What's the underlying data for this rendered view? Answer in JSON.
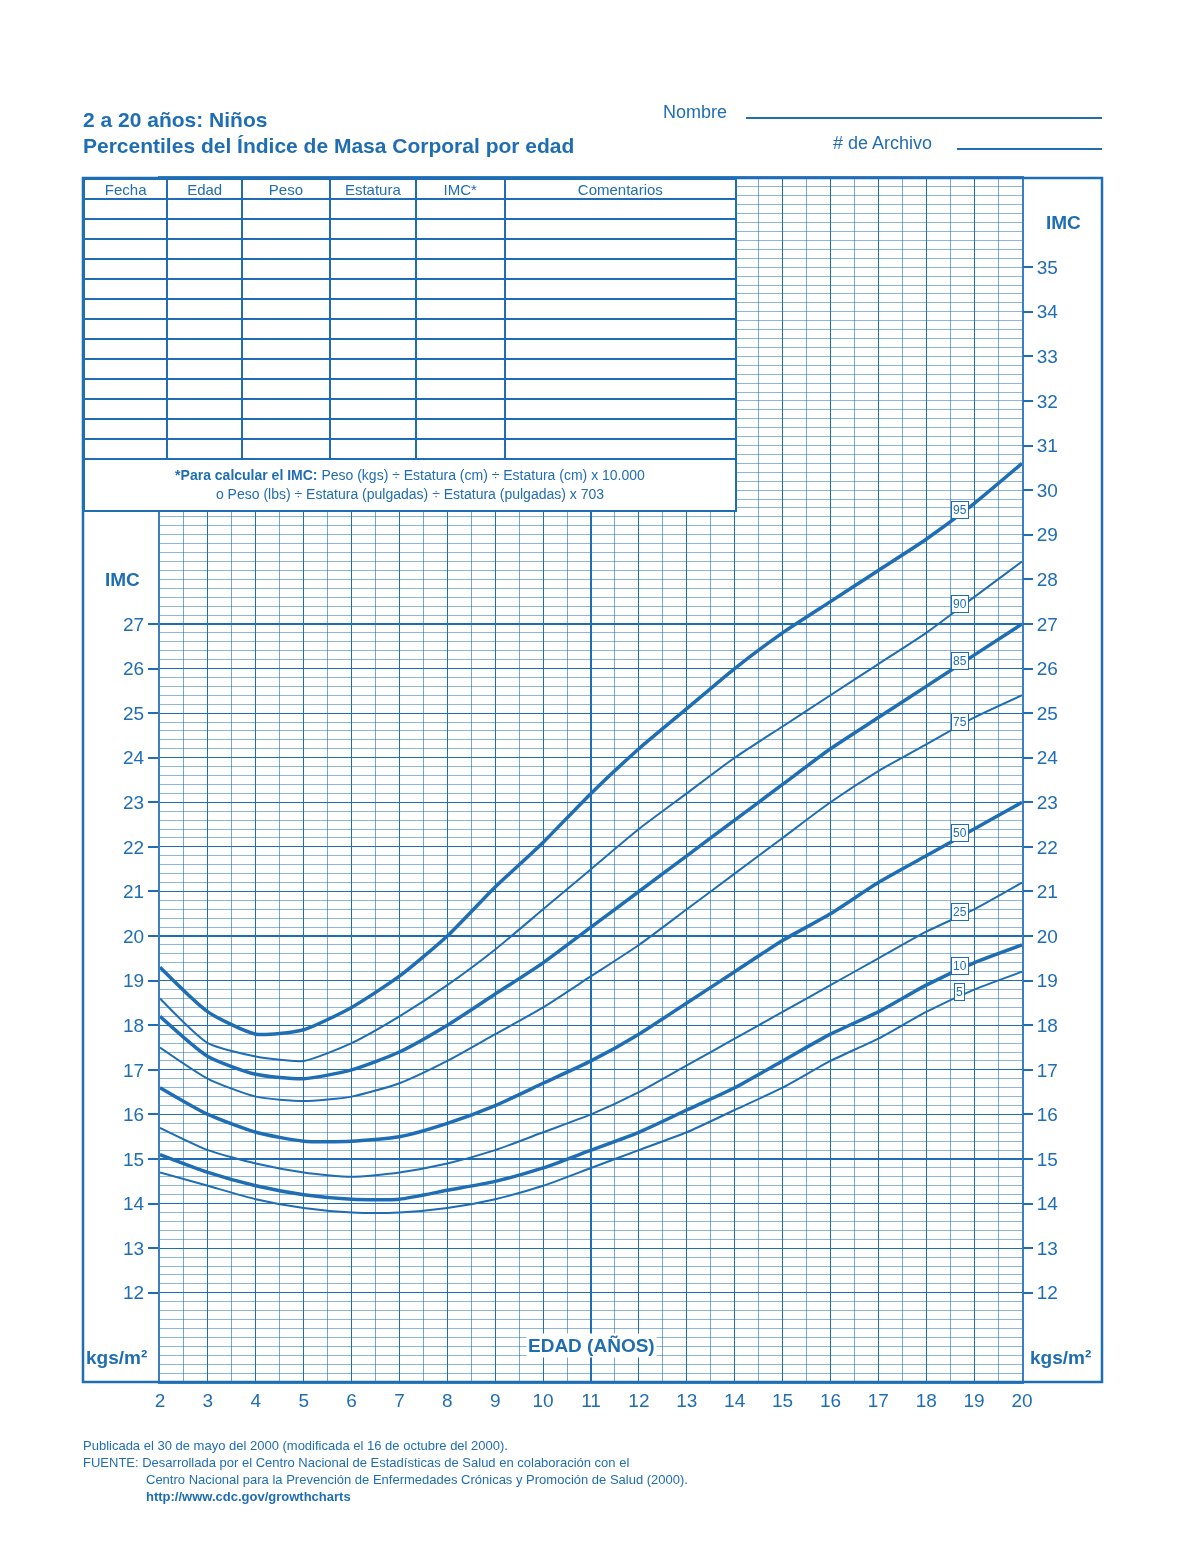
{
  "chart_data": {
    "type": "line",
    "title": "2 a 20 años: Niños",
    "subtitle": "Percentiles del Índice de Masa Corporal por edad",
    "xlabel": "EDAD (AÑOS)",
    "ylabel": "IMC",
    "y2label": "IMC",
    "x": [
      2,
      3,
      4,
      5,
      6,
      7,
      8,
      9,
      10,
      11,
      12,
      13,
      14,
      15,
      16,
      17,
      18,
      19,
      20
    ],
    "series": [
      {
        "name": "95",
        "color": "#1f6db3",
        "values": [
          19.3,
          18.3,
          17.8,
          17.9,
          18.4,
          19.1,
          20.0,
          21.1,
          22.1,
          23.2,
          24.2,
          25.1,
          26.0,
          26.8,
          27.5,
          28.2,
          28.9,
          29.7,
          30.6
        ]
      },
      {
        "name": "90",
        "color": "#1f6db3",
        "values": [
          18.6,
          17.6,
          17.3,
          17.2,
          17.6,
          18.2,
          18.9,
          19.7,
          20.6,
          21.5,
          22.4,
          23.2,
          24.0,
          24.7,
          25.4,
          26.1,
          26.8,
          27.6,
          28.4
        ]
      },
      {
        "name": "85",
        "color": "#1f6db3",
        "values": [
          18.2,
          17.3,
          16.9,
          16.8,
          17.0,
          17.4,
          18.0,
          18.7,
          19.4,
          20.2,
          21.0,
          21.8,
          22.6,
          23.4,
          24.2,
          24.9,
          25.6,
          26.3,
          27.0
        ]
      },
      {
        "name": "75",
        "color": "#1f6db3",
        "values": [
          17.5,
          16.8,
          16.4,
          16.3,
          16.4,
          16.7,
          17.2,
          17.8,
          18.4,
          19.1,
          19.8,
          20.6,
          21.4,
          22.2,
          23.0,
          23.7,
          24.3,
          24.9,
          25.4
        ]
      },
      {
        "name": "50",
        "color": "#1f6db3",
        "values": [
          16.6,
          16.0,
          15.6,
          15.4,
          15.4,
          15.5,
          15.8,
          16.2,
          16.7,
          17.2,
          17.8,
          18.5,
          19.2,
          19.9,
          20.5,
          21.2,
          21.8,
          22.4,
          23.0
        ]
      },
      {
        "name": "25",
        "color": "#1f6db3",
        "values": [
          15.7,
          15.2,
          14.9,
          14.7,
          14.6,
          14.7,
          14.9,
          15.2,
          15.6,
          16.0,
          16.5,
          17.1,
          17.7,
          18.3,
          18.9,
          19.5,
          20.1,
          20.6,
          21.2
        ]
      },
      {
        "name": "10",
        "color": "#1f6db3",
        "values": [
          15.1,
          14.7,
          14.4,
          14.2,
          14.1,
          14.1,
          14.3,
          14.5,
          14.8,
          15.2,
          15.6,
          16.1,
          16.6,
          17.2,
          17.8,
          18.3,
          18.9,
          19.4,
          19.8
        ]
      },
      {
        "name": "5",
        "color": "#1f6db3",
        "values": [
          14.7,
          14.4,
          14.1,
          13.9,
          13.8,
          13.8,
          13.9,
          14.1,
          14.4,
          14.8,
          15.2,
          15.6,
          16.1,
          16.6,
          17.2,
          17.7,
          18.3,
          18.8,
          19.2
        ]
      }
    ],
    "xlim": [
      2,
      20
    ],
    "xticks": [
      2,
      3,
      4,
      5,
      6,
      7,
      8,
      9,
      10,
      11,
      12,
      13,
      14,
      15,
      16,
      17,
      18,
      19,
      20
    ],
    "ylim": [
      10,
      37
    ],
    "yticks": [
      12,
      13,
      14,
      15,
      16,
      17,
      18,
      19,
      20,
      21,
      22,
      23,
      24,
      25,
      26,
      27
    ],
    "y2lim": [
      10,
      37
    ],
    "y2ticks": [
      12,
      13,
      14,
      15,
      16,
      17,
      18,
      19,
      20,
      21,
      22,
      23,
      24,
      25,
      26,
      27,
      28,
      29,
      30,
      31,
      32,
      33,
      34,
      35
    ],
    "grid": true,
    "annotations": [
      "Nombre",
      "# de Archivo",
      "Fecha",
      "Edad",
      "Peso",
      "Estatura",
      "IMC*",
      "Comentarios",
      "*Para calcular el IMC: Peso (kgs) ÷ Estatura (cm) ÷ Estatura (cm) x 10.000",
      "o Peso (lbs) ÷ Estatura (pulgadas) ÷ Estatura (pulgadas) x 703",
      "Publicada el 30 de mayo del 2000 (modificada el 16 de octubre del 2000).",
      "FUENTE: Desarrollada por el Centro Nacional de Estadísticas de Salud en colaboración con el",
      "Centro Nacional para la Prevención de Enfermedades Crónicas y Promoción de Salud (2000).",
      "http://www.cdc.gov/growthcharts",
      "kgs/m²",
      "kgs/m²"
    ]
  }
}
